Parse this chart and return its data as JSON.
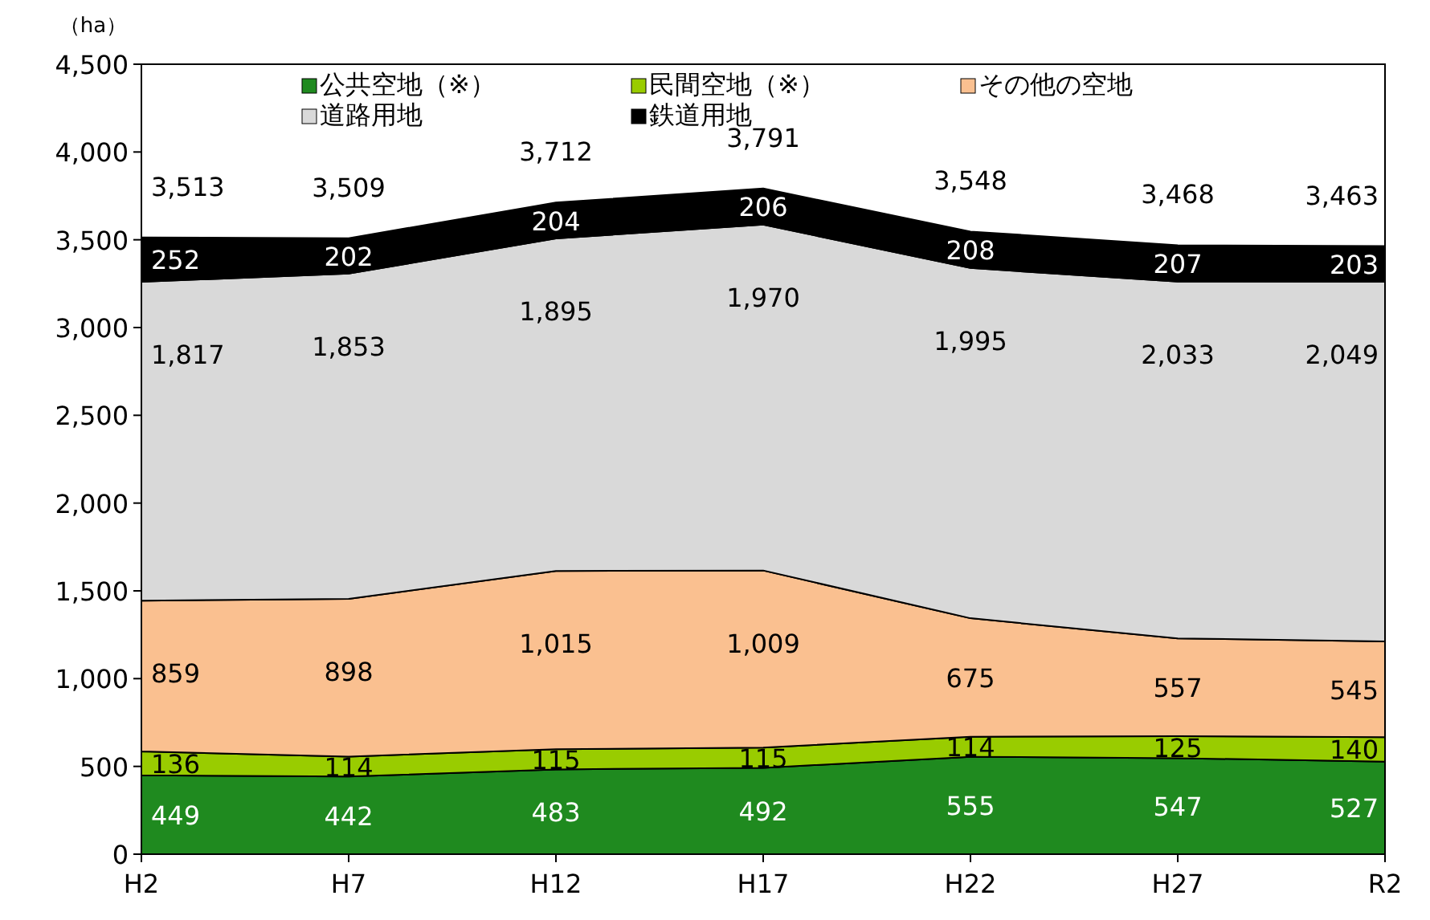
{
  "chart_data": {
    "type": "area",
    "stacked": true,
    "ylabel": "（ha）",
    "categories": [
      "H2",
      "H7",
      "H12",
      "H17",
      "H22",
      "H27",
      "R2"
    ],
    "ylim": [
      0,
      4500
    ],
    "yticks": [
      0,
      {
        "value": 500,
        "label": "500"
      },
      {
        "value": 1000,
        "label": "1,000"
      },
      {
        "value": 1500,
        "label": "1,500"
      },
      {
        "value": 2000,
        "label": "2,000"
      },
      {
        "value": 2500,
        "label": "2,500"
      },
      {
        "value": 3000,
        "label": "3,000"
      },
      {
        "value": 3500,
        "label": "3,500"
      },
      {
        "value": 4000,
        "label": "4,000"
      },
      {
        "value": 4500,
        "label": "4,500"
      }
    ],
    "legend": "top",
    "grid": false,
    "series": [
      {
        "name": "公共空地（※）",
        "color": "#1f8a1f",
        "values": [
          449,
          442,
          483,
          492,
          555,
          547,
          527
        ],
        "value_labels": [
          "449",
          "442",
          "483",
          "492",
          "555",
          "547",
          "527"
        ]
      },
      {
        "name": "民間空地（※）",
        "color": "#99cc00",
        "values": [
          136,
          114,
          115,
          115,
          114,
          125,
          140
        ],
        "value_labels": [
          "136",
          "114",
          "115",
          "115",
          "114",
          "125",
          "140"
        ]
      },
      {
        "name": "その他の空地",
        "color": "#fac090",
        "values": [
          859,
          898,
          1015,
          1009,
          675,
          557,
          545
        ],
        "value_labels": [
          "859",
          "898",
          "1,015",
          "1,009",
          "675",
          "557",
          "545"
        ]
      },
      {
        "name": "道路用地",
        "color": "#d9d9d9",
        "values": [
          1817,
          1853,
          1895,
          1970,
          1995,
          2033,
          2049
        ],
        "value_labels": [
          "1,817",
          "1,853",
          "1,895",
          "1,970",
          "1,995",
          "2,033",
          "2,049"
        ]
      },
      {
        "name": "鉄道用地",
        "color": "#000000",
        "values": [
          252,
          202,
          204,
          206,
          208,
          207,
          203
        ],
        "value_labels": [
          "252",
          "202",
          "204",
          "206",
          "208",
          "207",
          "203"
        ]
      }
    ],
    "totals": [
      "3,513",
      "3,509",
      "3,712",
      "3,791",
      "3,548",
      "3,468",
      "3,463"
    ]
  }
}
